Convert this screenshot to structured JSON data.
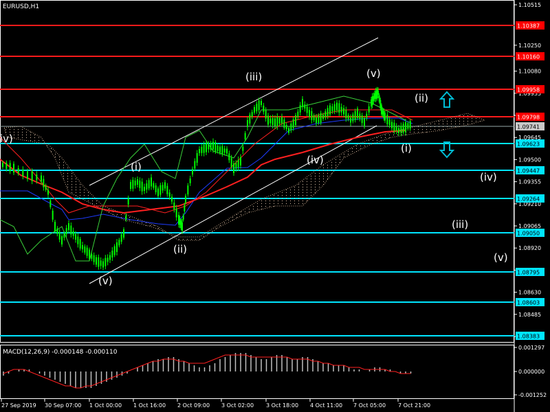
{
  "chart_title": "EURUSD,H1",
  "macd_title": "MACD(12,26,9) -0.000148 -0.000110",
  "colors": {
    "background": "#000000",
    "grid": "#ffffff",
    "red_level": "#ff1a1a",
    "cyan_level": "#00e5ff",
    "candle": "#00ff00",
    "blue_line": "#1e3cff",
    "red_ma": "#ff2020",
    "cloud_dots": "#d9c0a8",
    "channel": "#ffffff",
    "macd_hist": "#c0c0c0",
    "macd_signal": "#ff2020",
    "arrow": "#00bcd4",
    "price_tag_red_bg": "#ff0000",
    "price_tag_cyan_bg": "#00e5ff",
    "price_tag_current_bg": "#c8c8c8"
  },
  "chart_data": {
    "type": "candlestick",
    "symbol": "EURUSD",
    "timeframe": "H1",
    "ylim": [
      1.0825,
      1.1059
    ],
    "y_ticks": [
      "1.10515",
      "1.10250",
      "1.10080",
      "1.09935",
      "1.09790",
      "1.09645",
      "1.09500",
      "1.09355",
      "1.09210",
      "1.09065",
      "1.08920",
      "1.08775",
      "1.08630",
      "1.08485",
      "1.08340"
    ],
    "x_ticks": [
      "27 Sep 2019",
      "30 Sep 07:00",
      "1 Oct 00:00",
      "1 Oct 16:00",
      "2 Oct 09:00",
      "3 Oct 02:00",
      "3 Oct 18:00",
      "4 Oct 11:00",
      "7 Oct 05:00",
      "7 Oct 21:00"
    ],
    "levels": [
      {
        "price": 1.10387,
        "label": "1.10387",
        "kind": "red"
      },
      {
        "price": 1.1016,
        "label": "1.10160",
        "kind": "red"
      },
      {
        "price": 1.09958,
        "label": "1.09958",
        "kind": "red"
      },
      {
        "price": 1.09798,
        "label": "1.09798",
        "kind": "red"
      },
      {
        "price": 1.09741,
        "label": "1.09741",
        "kind": "current"
      },
      {
        "price": 1.09623,
        "label": "1.09623",
        "kind": "cyan"
      },
      {
        "price": 1.09447,
        "label": "1.09447",
        "kind": "cyan"
      },
      {
        "price": 1.09264,
        "label": "1.09264",
        "kind": "cyan"
      },
      {
        "price": 1.0905,
        "label": "1.09050",
        "kind": "cyan"
      },
      {
        "price": 1.08795,
        "label": "1.08795",
        "kind": "cyan"
      },
      {
        "price": 1.08603,
        "label": "1.08603",
        "kind": "cyan"
      },
      {
        "price": 1.08383,
        "label": "1.08383",
        "kind": "cyan"
      }
    ],
    "wave_labels": [
      "iv)",
      "(i)",
      "(ii)",
      "(iii)",
      "(iv)",
      "(v)",
      "(v)",
      "(i)",
      "(ii)",
      "(iv)",
      "(iii)",
      "(v)"
    ],
    "macd": {
      "ylim": [
        -0.0013,
        0.0014
      ],
      "y_ticks": [
        "0.001297",
        "0.000000",
        "-0.001252"
      ],
      "values": [
        -0.0002,
        -0.0001,
        0.0,
        0.0001,
        0.0001,
        0.0001,
        0.0,
        -0.0001,
        -0.0002,
        -0.0003,
        -0.0004,
        -0.0005,
        -0.0006,
        -0.0007,
        -0.0008,
        -0.0008,
        -0.0008,
        -0.0008,
        -0.0007,
        -0.0006,
        -0.0005,
        -0.0004,
        -0.0003,
        -0.0002,
        -0.0001,
        0.0,
        0.0002,
        0.0003,
        0.0004,
        0.0005,
        0.0006,
        0.0006,
        0.0007,
        0.0007,
        0.0006,
        0.0005,
        0.0004,
        0.0003,
        0.0002,
        0.0002,
        0.0003,
        0.0004,
        0.0006,
        0.0007,
        0.0008,
        0.0009,
        0.0009,
        0.0009,
        0.0008,
        0.0007,
        0.0006,
        0.0006,
        0.0007,
        0.0008,
        0.0008,
        0.0007,
        0.0006,
        0.0006,
        0.0007,
        0.0007,
        0.0006,
        0.0005,
        0.0004,
        0.0004,
        0.0003,
        0.0003,
        0.0003,
        0.0002,
        0.0001,
        0.0001,
        0.0,
        0.0001,
        0.0002,
        0.0002,
        0.0001,
        0.0001,
        0.0,
        -0.0001,
        -0.0001,
        -0.0001
      ],
      "signal": [
        -0.0001,
        0.0,
        0.0001,
        0.0001,
        0.0001,
        0.0,
        -0.0001,
        -0.0002,
        -0.0003,
        -0.0004,
        -0.0005,
        -0.0006,
        -0.0007,
        -0.0007,
        -0.0008,
        -0.0008,
        -0.0007,
        -0.0007,
        -0.0006,
        -0.0005,
        -0.0004,
        -0.0003,
        -0.0002,
        -0.0001,
        0.0,
        0.0001,
        0.0002,
        0.0003,
        0.0004,
        0.0005,
        0.0005,
        0.0006,
        0.0006,
        0.0006,
        0.0005,
        0.0005,
        0.0004,
        0.0004,
        0.0004,
        0.0004,
        0.0005,
        0.0006,
        0.0007,
        0.0008,
        0.0008,
        0.0008,
        0.0008,
        0.0008,
        0.0007,
        0.0007,
        0.0007,
        0.0007,
        0.0007,
        0.0007,
        0.0007,
        0.0007,
        0.0006,
        0.0006,
        0.0006,
        0.0006,
        0.0005,
        0.0005,
        0.0004,
        0.0004,
        0.0003,
        0.0003,
        0.0003,
        0.0002,
        0.0002,
        0.0002,
        0.0001,
        0.0001,
        0.0001,
        0.0001,
        0.0001,
        0.0,
        0.0,
        -0.0001,
        -0.0001,
        -0.0001
      ]
    }
  }
}
